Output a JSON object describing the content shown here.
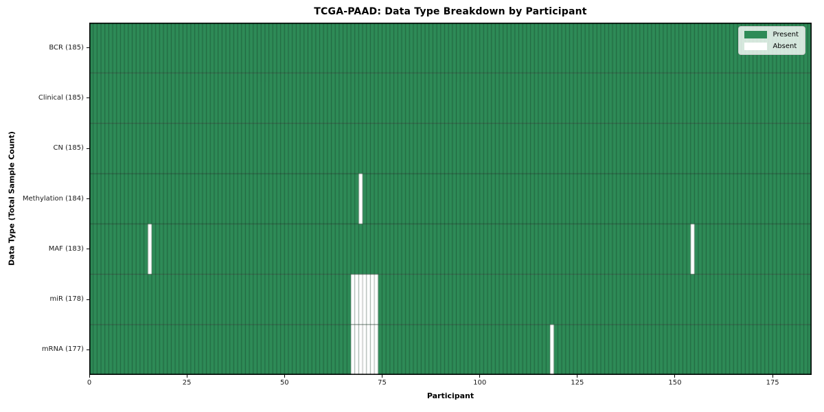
{
  "chart_data": {
    "type": "heatmap",
    "title": "TCGA-PAAD: Data Type Breakdown by Participant",
    "xlabel": "Participant",
    "ylabel": "Data Type (Total Sample Count)",
    "x_ticks": [
      0,
      25,
      50,
      75,
      100,
      125,
      150,
      175
    ],
    "xlim": [
      0,
      185
    ],
    "n_participants": 185,
    "grid": false,
    "legend_position": "upper-right",
    "legend": [
      {
        "label": "Present",
        "color": "#2e8b57"
      },
      {
        "label": "Absent",
        "color": "#ffffff"
      }
    ],
    "rows": [
      {
        "label": "BCR (185)",
        "data_type": "BCR",
        "total_samples": 185,
        "absent_participants": []
      },
      {
        "label": "Clinical (185)",
        "data_type": "Clinical",
        "total_samples": 185,
        "absent_participants": []
      },
      {
        "label": "CN (185)",
        "data_type": "CN",
        "total_samples": 185,
        "absent_participants": []
      },
      {
        "label": "Methylation (184)",
        "data_type": "Methylation",
        "total_samples": 184,
        "absent_participants": [
          69
        ]
      },
      {
        "label": "MAF (183)",
        "data_type": "MAF",
        "total_samples": 183,
        "absent_participants": [
          15,
          154
        ]
      },
      {
        "label": "miR (178)",
        "data_type": "miR",
        "total_samples": 178,
        "absent_participants": [
          67,
          68,
          69,
          70,
          71,
          72,
          73
        ]
      },
      {
        "label": "mRNA (177)",
        "data_type": "mRNA",
        "total_samples": 177,
        "absent_participants": [
          67,
          68,
          69,
          70,
          71,
          72,
          73,
          118
        ]
      }
    ],
    "colors": {
      "present": "#2e8b57",
      "absent": "#ffffff",
      "cell_edge": "rgba(0, 0, 0, 0.38)",
      "row_divider": "rgba(0, 0, 0, 0.45)",
      "axis": "#000000",
      "legend_background": "rgba(255, 255, 255, 0.8)",
      "legend_border": "#cccccc"
    }
  }
}
